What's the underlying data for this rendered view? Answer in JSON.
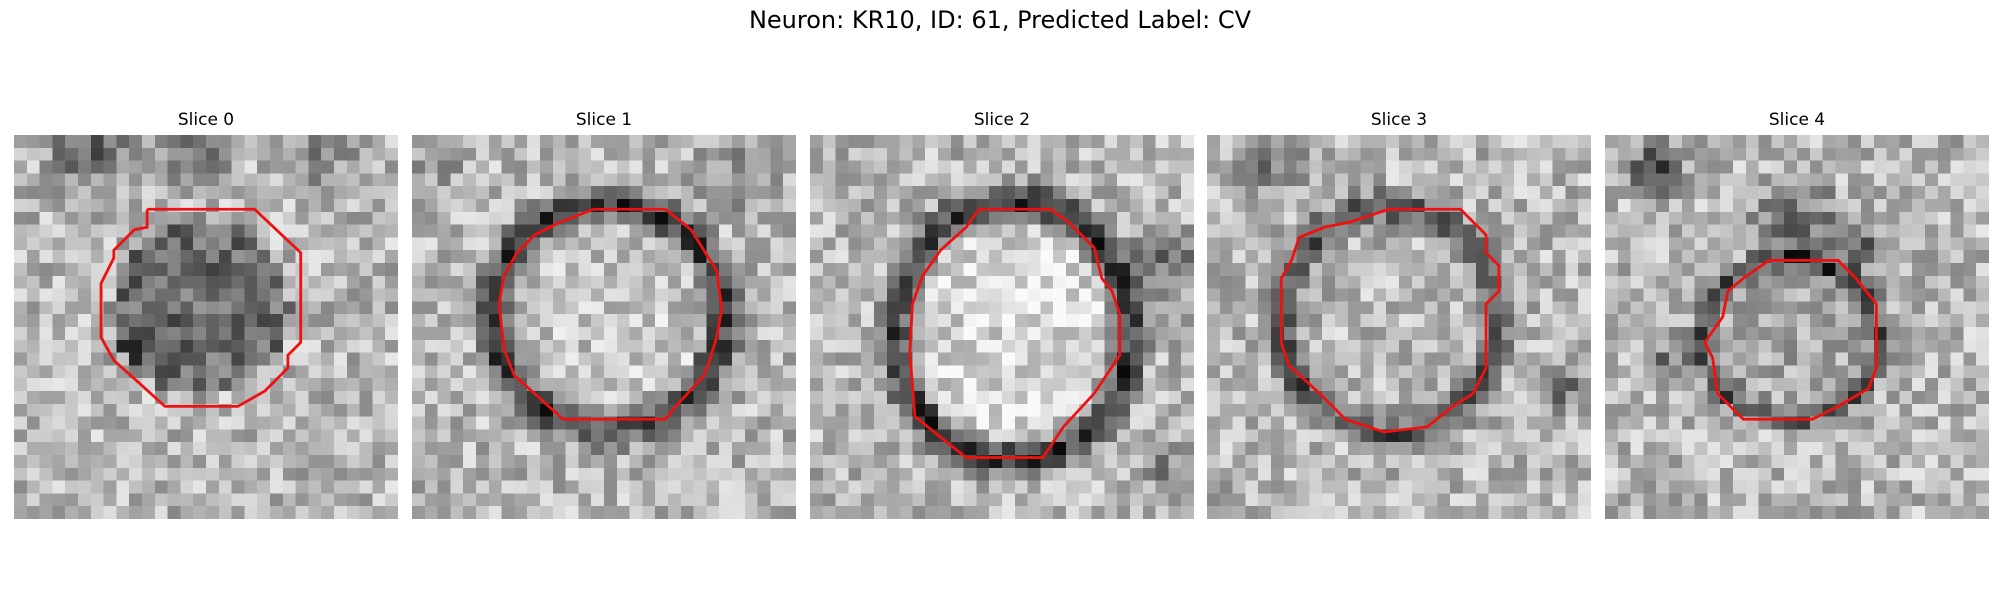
{
  "title": "Neuron: KR10, ID: 61, Predicted Label: CV",
  "panels": [
    {
      "title": "Slice 0"
    },
    {
      "title": "Slice 1"
    },
    {
      "title": "Slice 2"
    },
    {
      "title": "Slice 3"
    },
    {
      "title": "Slice 4"
    }
  ],
  "colors": {
    "contour": "#ee1111",
    "background": "#ffffff"
  },
  "colormap": "gray"
}
